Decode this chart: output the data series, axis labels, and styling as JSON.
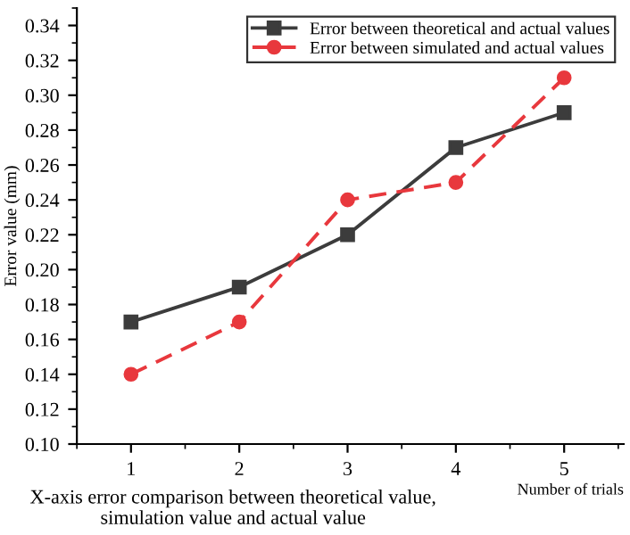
{
  "chart_data": {
    "type": "line",
    "xlabel": "Number of trials",
    "ylabel": "Error value (mm)",
    "annotations": [
      "X-axis error comparison between theoretical value, simulation value and actual value"
    ],
    "x": [
      1,
      2,
      3,
      4,
      5
    ],
    "series": [
      {
        "name": "Error between theoretical and actual values",
        "color": "#3c3c3c",
        "values": [
          0.17,
          0.19,
          0.22,
          0.27,
          0.29
        ],
        "marker": "square",
        "line_style": "solid"
      },
      {
        "name": "Error between simulated and actual values",
        "color": "#e8383d",
        "values": [
          0.14,
          0.17,
          0.24,
          0.25,
          0.31
        ],
        "marker": "circle",
        "line_style": "dashed"
      }
    ],
    "xlim": [
      0.5,
      5.55
    ],
    "xticks": [
      1,
      2,
      3,
      4,
      5
    ],
    "ylim": [
      0.1,
      0.35
    ],
    "yticks": [
      {
        "value": 0.1,
        "label": "0.10"
      },
      {
        "value": 0.12,
        "label": "0.12"
      },
      {
        "value": 0.14,
        "label": "0.14"
      },
      {
        "value": 0.16,
        "label": "0.16"
      },
      {
        "value": 0.18,
        "label": "0.18"
      },
      {
        "value": 0.2,
        "label": "0.20"
      },
      {
        "value": 0.22,
        "label": "0.22"
      },
      {
        "value": 0.24,
        "label": "0.24"
      },
      {
        "value": 0.26,
        "label": "0.26"
      },
      {
        "value": 0.28,
        "label": "0.28"
      },
      {
        "value": 0.3,
        "label": "0.30"
      },
      {
        "value": 0.32,
        "label": "0.32"
      },
      {
        "value": 0.34,
        "label": "0.34"
      }
    ],
    "grid": false,
    "legend": "top right"
  }
}
